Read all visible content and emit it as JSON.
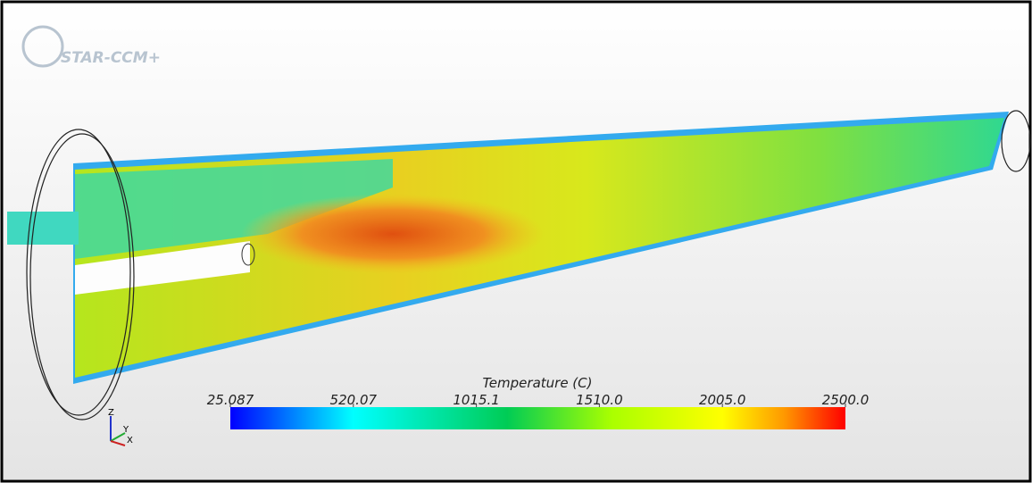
{
  "logo": "STAR-CCM+",
  "colorbar": {
    "title": "Temperature (C)",
    "range": [
      25.087,
      2500
    ],
    "ticks": [
      25.087,
      520.07,
      1015.1,
      {
        "value": 1510,
        "label": "1510.0"
      },
      {
        "value": 2005,
        "label": "2005.0"
      },
      {
        "value": 2500,
        "label": "2500.0"
      }
    ]
  },
  "triad": {
    "z": "Z",
    "y": "Y",
    "x": "X"
  }
}
